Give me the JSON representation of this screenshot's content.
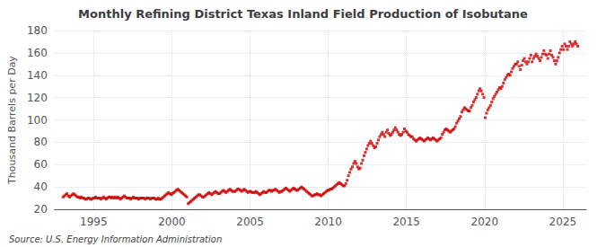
{
  "chart_data": {
    "type": "scatter",
    "title": "Monthly Refining District Texas Inland Field Production of Isobutane",
    "ylabel": "Thousand Barrels per Day",
    "annotations": [
      "Source: U.S. Energy Information Administration"
    ],
    "color": "#cc0000",
    "marker": "square",
    "grid": true,
    "xlim": [
      1992.5,
      2026.5
    ],
    "xticks": [
      1995,
      2000,
      2005,
      2010,
      2015,
      2020,
      2025
    ],
    "ylim": [
      20,
      180
    ],
    "yticks": [
      20,
      40,
      60,
      80,
      100,
      120,
      140,
      160,
      180
    ],
    "x": [
      1993.0417,
      1993.125,
      1993.2083,
      1993.2917,
      1993.375,
      1993.4583,
      1993.5417,
      1993.625,
      1993.7083,
      1993.7917,
      1993.875,
      1993.9583,
      1994.0417,
      1994.125,
      1994.2083,
      1994.2917,
      1994.375,
      1994.4583,
      1994.5417,
      1994.625,
      1994.7083,
      1994.7917,
      1994.875,
      1994.9583,
      1995.0417,
      1995.125,
      1995.2083,
      1995.2917,
      1995.375,
      1995.4583,
      1995.5417,
      1995.625,
      1995.7083,
      1995.7917,
      1995.875,
      1995.9583,
      1996.0417,
      1996.125,
      1996.2083,
      1996.2917,
      1996.375,
      1996.4583,
      1996.5417,
      1996.625,
      1996.7083,
      1996.7917,
      1996.875,
      1996.9583,
      1997.0417,
      1997.125,
      1997.2083,
      1997.2917,
      1997.375,
      1997.4583,
      1997.5417,
      1997.625,
      1997.7083,
      1997.7917,
      1997.875,
      1997.9583,
      1998.0417,
      1998.125,
      1998.2083,
      1998.2917,
      1998.375,
      1998.4583,
      1998.5417,
      1998.625,
      1998.7083,
      1998.7917,
      1998.875,
      1998.9583,
      1999.0417,
      1999.125,
      1999.2083,
      1999.2917,
      1999.375,
      1999.4583,
      1999.5417,
      1999.625,
      1999.7083,
      1999.7917,
      1999.875,
      1999.9583,
      2000.0417,
      2000.125,
      2000.2083,
      2000.2917,
      2000.375,
      2000.4583,
      2000.5417,
      2000.625,
      2000.7083,
      2000.7917,
      2000.875,
      2000.9583,
      2001.0417,
      2001.125,
      2001.2083,
      2001.2917,
      2001.375,
      2001.4583,
      2001.5417,
      2001.625,
      2001.7083,
      2001.7917,
      2001.875,
      2001.9583,
      2002.0417,
      2002.125,
      2002.2083,
      2002.2917,
      2002.375,
      2002.4583,
      2002.5417,
      2002.625,
      2002.7083,
      2002.7917,
      2002.875,
      2002.9583,
      2003.0417,
      2003.125,
      2003.2083,
      2003.2917,
      2003.375,
      2003.4583,
      2003.5417,
      2003.625,
      2003.7083,
      2003.7917,
      2003.875,
      2003.9583,
      2004.0417,
      2004.125,
      2004.2083,
      2004.2917,
      2004.375,
      2004.4583,
      2004.5417,
      2004.625,
      2004.7083,
      2004.7917,
      2004.875,
      2004.9583,
      2005.0417,
      2005.125,
      2005.2083,
      2005.2917,
      2005.375,
      2005.4583,
      2005.5417,
      2005.625,
      2005.7083,
      2005.7917,
      2005.875,
      2005.9583,
      2006.0417,
      2006.125,
      2006.2083,
      2006.2917,
      2006.375,
      2006.4583,
      2006.5417,
      2006.625,
      2006.7083,
      2006.7917,
      2006.875,
      2006.9583,
      2007.0417,
      2007.125,
      2007.2083,
      2007.2917,
      2007.375,
      2007.4583,
      2007.5417,
      2007.625,
      2007.7083,
      2007.7917,
      2007.875,
      2007.9583,
      2008.0417,
      2008.125,
      2008.2083,
      2008.2917,
      2008.375,
      2008.4583,
      2008.5417,
      2008.625,
      2008.7083,
      2008.7917,
      2008.875,
      2008.9583,
      2009.0417,
      2009.125,
      2009.2083,
      2009.2917,
      2009.375,
      2009.4583,
      2009.5417,
      2009.625,
      2009.7083,
      2009.7917,
      2009.875,
      2009.9583,
      2010.0417,
      2010.125,
      2010.2083,
      2010.2917,
      2010.375,
      2010.4583,
      2010.5417,
      2010.625,
      2010.7083,
      2010.7917,
      2010.875,
      2010.9583,
      2011.0417,
      2011.125,
      2011.2083,
      2011.2917,
      2011.375,
      2011.4583,
      2011.5417,
      2011.625,
      2011.7083,
      2011.7917,
      2011.875,
      2011.9583,
      2012.0417,
      2012.125,
      2012.2083,
      2012.2917,
      2012.375,
      2012.4583,
      2012.5417,
      2012.625,
      2012.7083,
      2012.7917,
      2012.875,
      2012.9583,
      2013.0417,
      2013.125,
      2013.2083,
      2013.2917,
      2013.375,
      2013.4583,
      2013.5417,
      2013.625,
      2013.7083,
      2013.7917,
      2013.875,
      2013.9583,
      2014.0417,
      2014.125,
      2014.2083,
      2014.2917,
      2014.375,
      2014.4583,
      2014.5417,
      2014.625,
      2014.7083,
      2014.7917,
      2014.875,
      2014.9583,
      2015.0417,
      2015.125,
      2015.2083,
      2015.2917,
      2015.375,
      2015.4583,
      2015.5417,
      2015.625,
      2015.7083,
      2015.7917,
      2015.875,
      2015.9583,
      2016.0417,
      2016.125,
      2016.2083,
      2016.2917,
      2016.375,
      2016.4583,
      2016.5417,
      2016.625,
      2016.7083,
      2016.7917,
      2016.875,
      2016.9583,
      2017.0417,
      2017.125,
      2017.2083,
      2017.2917,
      2017.375,
      2017.4583,
      2017.5417,
      2017.625,
      2017.7083,
      2017.7917,
      2017.875,
      2017.9583,
      2018.0417,
      2018.125,
      2018.2083,
      2018.2917,
      2018.375,
      2018.4583,
      2018.5417,
      2018.625,
      2018.7083,
      2018.7917,
      2018.875,
      2018.9583,
      2019.0417,
      2019.125,
      2019.2083,
      2019.2917,
      2019.375,
      2019.4583,
      2019.5417,
      2019.625,
      2019.7083,
      2019.7917,
      2019.875,
      2019.9583,
      2020.0417,
      2020.125,
      2020.2083,
      2020.2917,
      2020.375,
      2020.4583,
      2020.5417,
      2020.625,
      2020.7083,
      2020.7917,
      2020.875,
      2020.9583,
      2021.0417,
      2021.125,
      2021.2083,
      2021.2917,
      2021.375,
      2021.4583,
      2021.5417,
      2021.625,
      2021.7083,
      2021.7917,
      2021.875,
      2021.9583,
      2022.0417,
      2022.125,
      2022.2083,
      2022.2917,
      2022.375,
      2022.4583,
      2022.5417,
      2022.625,
      2022.7083,
      2022.7917,
      2022.875,
      2022.9583,
      2023.0417,
      2023.125,
      2023.2083,
      2023.2917,
      2023.375,
      2023.4583,
      2023.5417,
      2023.625,
      2023.7083,
      2023.7917,
      2023.875,
      2023.9583,
      2024.0417,
      2024.125,
      2024.2083,
      2024.2917,
      2024.375,
      2024.4583,
      2024.5417,
      2024.625,
      2024.7083,
      2024.7917,
      2024.875,
      2024.9583,
      2025.0417,
      2025.125,
      2025.2083,
      2025.2917,
      2025.375,
      2025.4583,
      2025.5417,
      2025.625,
      2025.7083,
      2025.7917,
      2025.875,
      2025.9583
    ],
    "values": [
      31,
      32,
      33,
      34,
      32,
      31,
      32,
      33,
      34,
      33,
      32,
      31,
      31,
      30,
      31,
      30,
      30,
      29,
      29,
      30,
      30,
      29,
      29,
      30,
      30,
      31,
      30,
      30,
      30,
      29,
      30,
      31,
      30,
      29,
      30,
      31,
      31,
      30,
      31,
      30,
      31,
      30,
      31,
      30,
      29,
      30,
      31,
      32,
      31,
      30,
      30,
      30,
      29,
      30,
      31,
      30,
      30,
      30,
      29,
      30,
      30,
      30,
      30,
      29,
      30,
      30,
      30,
      29,
      30,
      30,
      30,
      29,
      29,
      30,
      29,
      29,
      30,
      31,
      32,
      33,
      34,
      35,
      34,
      33,
      34,
      35,
      36,
      37,
      38,
      37,
      36,
      35,
      34,
      33,
      32,
      31,
      25,
      26,
      27,
      28,
      29,
      30,
      31,
      32,
      33,
      33,
      32,
      31,
      31,
      32,
      33,
      34,
      35,
      34,
      33,
      34,
      35,
      36,
      35,
      34,
      34,
      35,
      36,
      37,
      36,
      35,
      36,
      37,
      38,
      37,
      36,
      36,
      36,
      37,
      38,
      38,
      37,
      36,
      37,
      38,
      37,
      36,
      35,
      36,
      36,
      35,
      35,
      35,
      36,
      35,
      34,
      33,
      34,
      35,
      36,
      35,
      35,
      36,
      37,
      37,
      36,
      37,
      37,
      38,
      37,
      36,
      35,
      36,
      36,
      37,
      38,
      39,
      38,
      37,
      36,
      37,
      38,
      39,
      38,
      37,
      37,
      38,
      39,
      40,
      39,
      38,
      37,
      36,
      35,
      34,
      33,
      32,
      32,
      33,
      33,
      34,
      33,
      33,
      32,
      33,
      34,
      35,
      36,
      37,
      37,
      38,
      38,
      39,
      40,
      41,
      42,
      43,
      44,
      43,
      42,
      41,
      41,
      43,
      46,
      50,
      53,
      56,
      58,
      61,
      63,
      61,
      58,
      56,
      57,
      61,
      64,
      68,
      71,
      74,
      77,
      79,
      81,
      79,
      77,
      75,
      76,
      79,
      82,
      85,
      87,
      89,
      87,
      85,
      89,
      91,
      88,
      86,
      87,
      89,
      91,
      93,
      91,
      89,
      87,
      86,
      87,
      89,
      92,
      90,
      89,
      87,
      86,
      85,
      85,
      83,
      82,
      81,
      82,
      83,
      84,
      83,
      82,
      81,
      82,
      83,
      84,
      83,
      82,
      83,
      84,
      83,
      82,
      81,
      82,
      83,
      84,
      87,
      89,
      91,
      92,
      91,
      90,
      89,
      90,
      91,
      92,
      94,
      97,
      99,
      101,
      103,
      107,
      109,
      111,
      110,
      109,
      108,
      108,
      111,
      113,
      116,
      118,
      120,
      123,
      126,
      128,
      126,
      123,
      120,
      102,
      106,
      109,
      111,
      113,
      116,
      119,
      121,
      123,
      125,
      127,
      129,
      128,
      130,
      133,
      136,
      138,
      140,
      141,
      140,
      143,
      146,
      148,
      150,
      150,
      152,
      148,
      145,
      149,
      153,
      155,
      152,
      150,
      152,
      155,
      158,
      152,
      155,
      157,
      159,
      157,
      155,
      153,
      156,
      159,
      162,
      159,
      158,
      155,
      159,
      162,
      158,
      156,
      153,
      150,
      153,
      156,
      160,
      163,
      166,
      163,
      168,
      166,
      163,
      166,
      170,
      168,
      166,
      168,
      170,
      168,
      166
    ]
  }
}
